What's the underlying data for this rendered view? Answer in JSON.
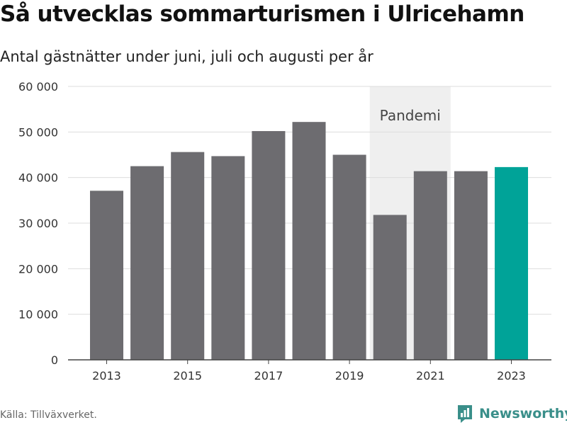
{
  "chart_data": {
    "type": "bar",
    "title": "Så utvecklas sommarturismen i Ulricehamn",
    "subtitle": "Antal gästnätter under juni, juli och augusti per år",
    "categories": [
      2013,
      2014,
      2015,
      2016,
      2017,
      2018,
      2019,
      2020,
      2021,
      2022,
      2023
    ],
    "values": [
      37100,
      42500,
      45600,
      44700,
      50200,
      52200,
      45000,
      31800,
      41400,
      41400,
      42300
    ],
    "x_tick_labels": [
      "2013",
      "2015",
      "2017",
      "2019",
      "2021",
      "2023"
    ],
    "y_ticks": [
      0,
      10000,
      20000,
      30000,
      40000,
      50000,
      60000
    ],
    "y_tick_labels": [
      "0",
      "10 000",
      "20 000",
      "30 000",
      "40 000",
      "50 000",
      "60 000"
    ],
    "ylim": [
      0,
      60000
    ],
    "grid": true,
    "annotation": {
      "label": "Pandemi",
      "x_start": 2019.5,
      "x_end": 2021.5
    },
    "colors": {
      "bar": "#6d6c70",
      "highlight": "#00a398",
      "pandemic_band": "#efefef",
      "grid": "#dddddd"
    },
    "highlight_category": 2023
  },
  "source": "Källa: Tillväxverket.",
  "brand": {
    "name": "Newsworthy",
    "icon": "newsworthy-logo-icon"
  }
}
